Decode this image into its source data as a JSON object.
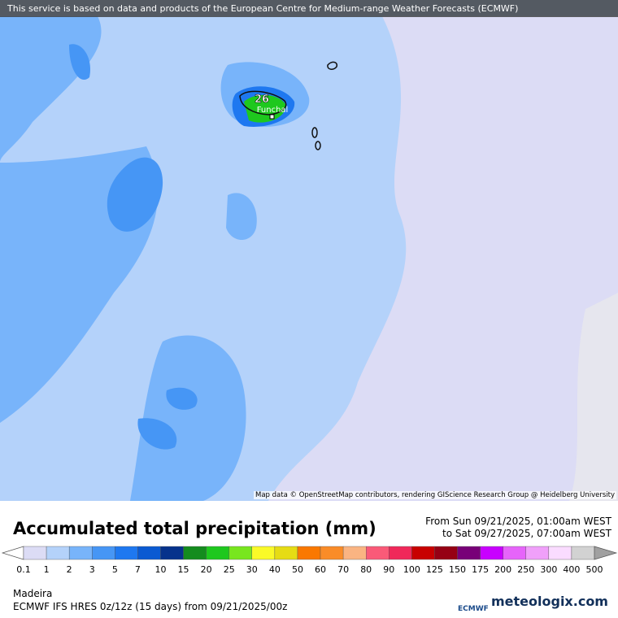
{
  "banner": "This service is based on data and products of the European Centre for Medium-range Weather Forecasts (ECMWF)",
  "map": {
    "places": [
      "Funchal"
    ],
    "max_value": "26",
    "attribution": "Map data © OpenStreetMap contributors, rendering GIScience Research Group @ Heidelberg University"
  },
  "legend": {
    "title": "Accumulated total precipitation (mm)",
    "period_from": "From Sun 09/21/2025, 01:00am WEST",
    "period_to": "to Sat 09/27/2025, 07:00am WEST",
    "labels": [
      "0.1",
      "1",
      "2",
      "3",
      "5",
      "7",
      "10",
      "15",
      "20",
      "25",
      "30",
      "40",
      "50",
      "60",
      "70",
      "80",
      "90",
      "100",
      "125",
      "150",
      "175",
      "200",
      "250",
      "300",
      "400",
      "500"
    ],
    "under_color": "#ffffff",
    "colors": [
      "#dcdcf5",
      "#b4d2fa",
      "#78b4fa",
      "#4696f5",
      "#1e78f0",
      "#0a5ad2",
      "#06328c",
      "#148c1e",
      "#1ec81e",
      "#78e61e",
      "#fafa28",
      "#e6dc14",
      "#fa7800",
      "#fa8c28",
      "#fab482",
      "#fa5a78",
      "#f0285a",
      "#c80000",
      "#960014",
      "#780078",
      "#c800ff",
      "#e664fa",
      "#f0a0fa",
      "#fadcff",
      "#d2d2d2"
    ],
    "over_color": "#a0a0a0"
  },
  "footer": {
    "region": "Madeira",
    "model": "ECMWF IFS HRES 0z/12z (15 days) from  09/21/2025/00z",
    "logo": "ECMWF",
    "brand": "meteologix.com"
  }
}
